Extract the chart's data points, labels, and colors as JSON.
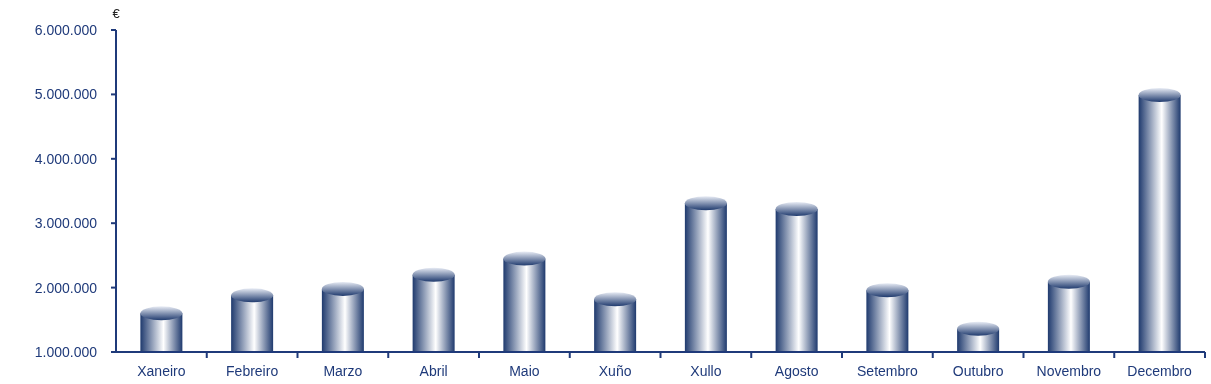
{
  "chart_data": {
    "type": "bar",
    "ylabel": "€",
    "categories": [
      "Xaneiro",
      "Febreiro",
      "Marzo",
      "Abril",
      "Maio",
      "Xuño",
      "Xullo",
      "Agosto",
      "Setembro",
      "Outubro",
      "Novembro",
      "Decembro"
    ],
    "values": [
      1600000,
      1880000,
      1980000,
      2200000,
      2450000,
      1820000,
      3310000,
      3220000,
      1960000,
      1360000,
      2090000,
      4990000
    ],
    "color": "#1f3a6e",
    "ylim": [
      1000000,
      6000000
    ],
    "yticks": [
      {
        "value": 1000000,
        "label": "1.000.000"
      },
      {
        "value": 2000000,
        "label": "2.000.000"
      },
      {
        "value": 3000000,
        "label": "3.000.000"
      },
      {
        "value": 4000000,
        "label": "4.000.000"
      },
      {
        "value": 5000000,
        "label": "5.000.000"
      },
      {
        "value": 6000000,
        "label": "6.000.000"
      }
    ],
    "grid": false
  }
}
